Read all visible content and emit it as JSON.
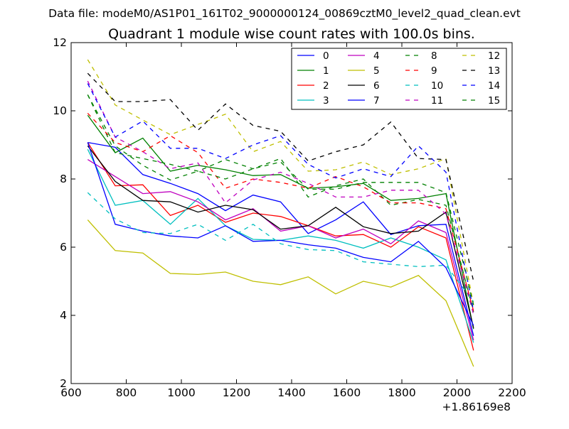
{
  "suptitle": "Data file: modeM0/AS1P01_161T02_9000000124_00869cztM0_level2_quad_clean.evt",
  "chart_data": {
    "type": "line",
    "title": "Quadrant 1 module wise count rates with 100.0s bins.",
    "xlabel": "",
    "ylabel": "",
    "x_offset_label": "+1.86169e8",
    "xlim": [
      600,
      2200
    ],
    "ylim": [
      2,
      12
    ],
    "xticks": [
      600,
      800,
      1000,
      1200,
      1400,
      1600,
      1800,
      2000,
      2200
    ],
    "yticks": [
      2,
      4,
      6,
      8,
      10,
      12
    ],
    "legend_position": "top-right",
    "legend_columns": 4,
    "x": [
      660,
      760,
      860,
      960,
      1060,
      1160,
      1260,
      1360,
      1460,
      1560,
      1660,
      1760,
      1860,
      1960,
      2060
    ],
    "series": [
      {
        "name": "0",
        "color": "#0000ff",
        "style": "solid",
        "values": [
          9.07,
          8.93,
          8.13,
          7.87,
          7.57,
          7.07,
          7.53,
          7.33,
          6.4,
          6.8,
          7.33,
          6.37,
          6.63,
          6.67,
          3.4
        ]
      },
      {
        "name": "1",
        "color": "#008000",
        "style": "solid",
        "values": [
          9.87,
          8.77,
          9.2,
          8.23,
          8.4,
          8.27,
          8.1,
          8.13,
          7.73,
          7.77,
          7.87,
          7.37,
          7.43,
          7.57,
          3.6
        ]
      },
      {
        "name": "2",
        "color": "#ff0000",
        "style": "solid",
        "values": [
          9.07,
          7.8,
          7.83,
          6.93,
          7.23,
          6.73,
          7.0,
          6.9,
          6.63,
          6.33,
          6.37,
          6.0,
          6.6,
          6.27,
          2.97
        ]
      },
      {
        "name": "3",
        "color": "#00bfbf",
        "style": "solid",
        "values": [
          8.87,
          7.23,
          7.37,
          6.67,
          7.43,
          6.63,
          6.23,
          6.2,
          6.33,
          6.2,
          5.97,
          6.27,
          6.0,
          5.63,
          3.2
        ]
      },
      {
        "name": "4",
        "color": "#bf00bf",
        "style": "solid",
        "values": [
          8.57,
          8.07,
          7.57,
          7.63,
          7.33,
          6.8,
          7.13,
          6.47,
          6.63,
          6.27,
          6.53,
          6.1,
          6.77,
          6.43,
          3.27
        ]
      },
      {
        "name": "5",
        "color": "#bfbf00",
        "style": "solid",
        "values": [
          6.8,
          5.9,
          5.83,
          5.23,
          5.2,
          5.27,
          5.0,
          4.9,
          5.13,
          4.63,
          5.0,
          4.83,
          5.17,
          4.43,
          2.5
        ]
      },
      {
        "name": "6",
        "color": "#000000",
        "style": "solid",
        "values": [
          8.97,
          7.93,
          7.37,
          7.33,
          7.03,
          7.23,
          7.1,
          6.53,
          6.63,
          7.17,
          6.6,
          6.4,
          6.47,
          7.03,
          3.63
        ]
      },
      {
        "name": "7",
        "color": "#0000ff",
        "style": "solid",
        "values": [
          9.07,
          6.67,
          6.47,
          6.33,
          6.27,
          6.63,
          6.17,
          6.2,
          6.07,
          5.97,
          5.7,
          5.57,
          6.17,
          5.4,
          3.7
        ]
      },
      {
        "name": "8",
        "color": "#008000",
        "style": "dashed",
        "values": [
          10.47,
          8.77,
          8.6,
          8.43,
          8.23,
          8.57,
          8.3,
          8.6,
          7.47,
          7.8,
          8.0,
          7.23,
          7.4,
          7.23,
          4.1
        ]
      },
      {
        "name": "9",
        "color": "#ff0000",
        "style": "dashed",
        "values": [
          9.93,
          9.07,
          8.8,
          9.27,
          8.77,
          7.73,
          8.0,
          7.9,
          7.73,
          8.07,
          7.77,
          7.3,
          7.3,
          7.13,
          4.13
        ]
      },
      {
        "name": "10",
        "color": "#00bfbf",
        "style": "dashed",
        "values": [
          7.6,
          6.83,
          6.43,
          6.4,
          6.67,
          6.2,
          6.67,
          6.1,
          5.93,
          5.9,
          5.57,
          5.5,
          5.43,
          5.47,
          4.4
        ]
      },
      {
        "name": "11",
        "color": "#bf00bf",
        "style": "dashed",
        "values": [
          10.87,
          9.23,
          8.8,
          8.3,
          8.47,
          7.3,
          7.97,
          8.2,
          7.87,
          7.47,
          7.47,
          7.67,
          7.67,
          6.97,
          4.03
        ]
      },
      {
        "name": "12",
        "color": "#bfbf00",
        "style": "dashed",
        "values": [
          11.5,
          10.17,
          9.73,
          9.3,
          9.6,
          9.9,
          8.8,
          9.1,
          8.23,
          8.27,
          8.5,
          8.13,
          8.3,
          8.6,
          4.3
        ]
      },
      {
        "name": "13",
        "color": "#000000",
        "style": "dashed",
        "values": [
          11.1,
          10.27,
          10.27,
          10.33,
          9.43,
          10.2,
          9.57,
          9.4,
          8.53,
          8.8,
          9.0,
          9.67,
          8.6,
          8.57,
          5.0
        ]
      },
      {
        "name": "14",
        "color": "#0000ff",
        "style": "dashed",
        "values": [
          10.8,
          9.23,
          9.7,
          8.9,
          8.9,
          8.6,
          9.0,
          9.27,
          8.43,
          8.03,
          8.3,
          8.07,
          8.97,
          8.2,
          4.13
        ]
      },
      {
        "name": "15",
        "color": "#008000",
        "style": "dashed",
        "values": [
          10.47,
          8.97,
          8.4,
          7.97,
          8.23,
          8.0,
          8.3,
          8.5,
          7.7,
          7.7,
          7.9,
          7.9,
          7.9,
          7.6,
          4.3
        ]
      }
    ]
  }
}
